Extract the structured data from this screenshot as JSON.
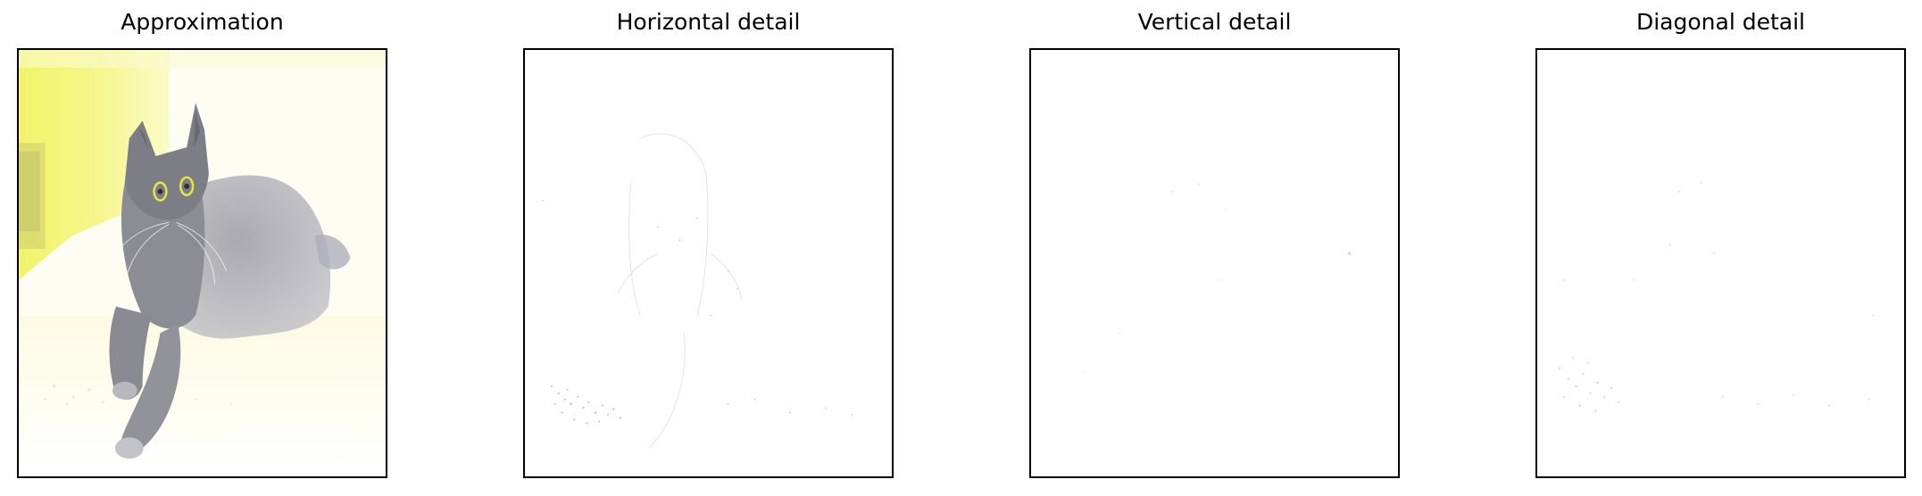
{
  "panels": [
    {
      "title": "Approximation",
      "image": "cat-approximation-image"
    },
    {
      "title": "Horizontal detail",
      "image": "horizontal-detail-image"
    },
    {
      "title": "Vertical detail",
      "image": "vertical-detail-image"
    },
    {
      "title": "Diagonal detail",
      "image": "diagonal-detail-image"
    }
  ],
  "colors": {
    "background": "#ffffff",
    "frame": "#000000",
    "approx_yellow": "#f4f57a",
    "cat_gray": "#8d8d95",
    "detail_speckle": "#9a9a9a"
  }
}
